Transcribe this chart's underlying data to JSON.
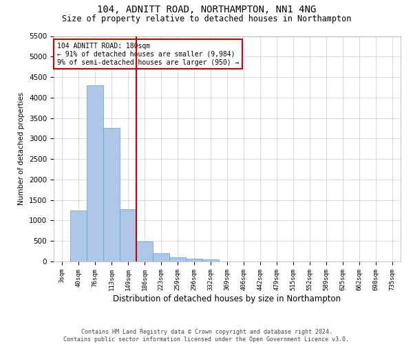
{
  "title": "104, ADNITT ROAD, NORTHAMPTON, NN1 4NG",
  "subtitle": "Size of property relative to detached houses in Northampton",
  "xlabel": "Distribution of detached houses by size in Northampton",
  "ylabel": "Number of detached properties",
  "bar_color": "#aec6e8",
  "bar_edge_color": "#5a9fd4",
  "vline_index": 4.5,
  "vline_color": "#cc0000",
  "annotation_line1": "104 ADNITT ROAD: 180sqm",
  "annotation_line2": "← 91% of detached houses are smaller (9,984)",
  "annotation_line3": "9% of semi-detached houses are larger (950) →",
  "annotation_box_color": "#cc0000",
  "categories": [
    "3sqm",
    "40sqm",
    "76sqm",
    "113sqm",
    "149sqm",
    "186sqm",
    "223sqm",
    "259sqm",
    "296sqm",
    "332sqm",
    "369sqm",
    "406sqm",
    "442sqm",
    "479sqm",
    "515sqm",
    "552sqm",
    "589sqm",
    "625sqm",
    "662sqm",
    "698sqm",
    "735sqm"
  ],
  "values": [
    0,
    1250,
    4300,
    3250,
    1275,
    490,
    195,
    105,
    60,
    50,
    0,
    0,
    0,
    0,
    0,
    0,
    0,
    0,
    0,
    0,
    0
  ],
  "ylim": [
    0,
    5500
  ],
  "yticks": [
    0,
    500,
    1000,
    1500,
    2000,
    2500,
    3000,
    3500,
    4000,
    4500,
    5000,
    5500
  ],
  "footer_text": "Contains HM Land Registry data © Crown copyright and database right 2024.\nContains public sector information licensed under the Open Government Licence v3.0.",
  "bg_color": "#ffffff",
  "grid_color": "#cccccc"
}
